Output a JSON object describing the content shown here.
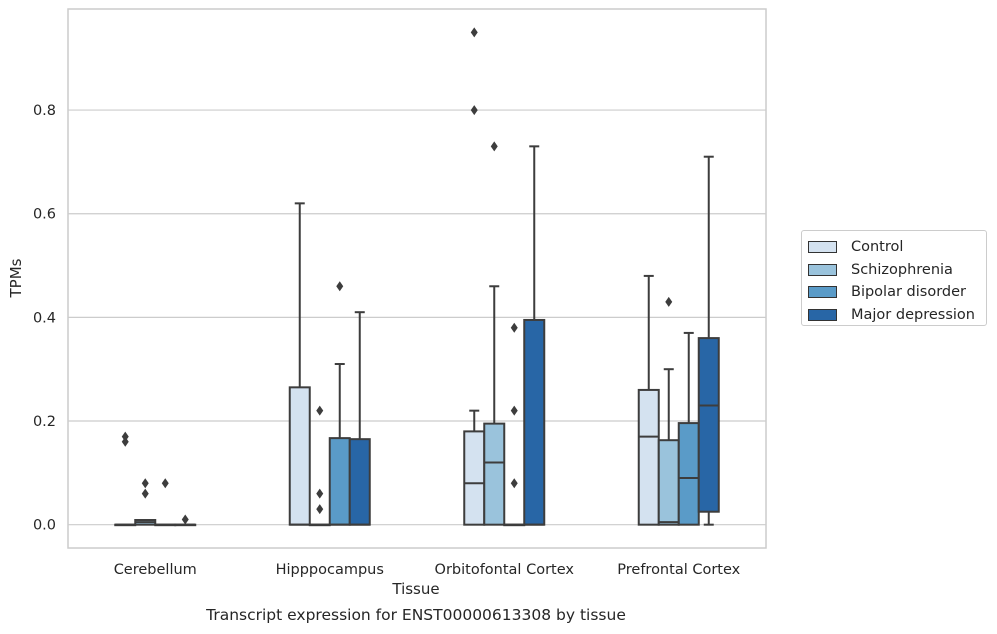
{
  "chart_data": {
    "type": "box",
    "xlabel": "Tissue",
    "ylabel": "TPMs",
    "caption": "Transcript expression for ENST00000613308 by tissue",
    "ylim": [
      -0.045,
      0.995
    ],
    "yticks": [
      0.0,
      0.2,
      0.4,
      0.6,
      0.8
    ],
    "ytick_labels": [
      "0.0",
      "0.2",
      "0.4",
      "0.6",
      "0.8"
    ],
    "grid": true,
    "legend_position": "right",
    "categories": [
      "Cerebellum",
      "Hipppocampus",
      "Orbitofontal Cortex",
      "Prefrontal Cortex"
    ],
    "series": [
      {
        "name": "Control",
        "color": "#d4e2f0",
        "boxes": [
          {
            "whislo": 0,
            "q1": 0,
            "med": 0,
            "q3": 0,
            "whishi": 0,
            "fliers": [
              0.16,
              0.17
            ]
          },
          {
            "whislo": 0,
            "q1": 0,
            "med": 0,
            "q3": 0.265,
            "whishi": 0.62,
            "fliers": []
          },
          {
            "whislo": 0,
            "q1": 0,
            "med": 0.08,
            "q3": 0.18,
            "whishi": 0.22,
            "fliers": [
              0.8,
              0.95
            ]
          },
          {
            "whislo": 0,
            "q1": 0,
            "med": 0.17,
            "q3": 0.26,
            "whishi": 0.48,
            "fliers": []
          }
        ]
      },
      {
        "name": "Schizophrenia",
        "color": "#9ac3dc",
        "boxes": [
          {
            "whislo": 0,
            "q1": 0,
            "med": 0.005,
            "q3": 0.009,
            "whishi": 0.009,
            "fliers": [
              0.06,
              0.08
            ]
          },
          {
            "whislo": 0,
            "q1": 0,
            "med": 0,
            "q3": 0,
            "whishi": 0,
            "fliers": [
              0.03,
              0.06,
              0.22
            ]
          },
          {
            "whislo": 0,
            "q1": 0,
            "med": 0.12,
            "q3": 0.195,
            "whishi": 0.46,
            "fliers": [
              0.73
            ]
          },
          {
            "whislo": 0,
            "q1": 0,
            "med": 0.005,
            "q3": 0.163,
            "whishi": 0.3,
            "fliers": [
              0.43
            ]
          }
        ]
      },
      {
        "name": "Bipolar disorder",
        "color": "#5a9bc8",
        "boxes": [
          {
            "whislo": 0,
            "q1": 0,
            "med": 0,
            "q3": 0,
            "whishi": 0,
            "fliers": [
              0.08
            ]
          },
          {
            "whislo": 0,
            "q1": 0,
            "med": 0,
            "q3": 0.167,
            "whishi": 0.31,
            "fliers": [
              0.46
            ]
          },
          {
            "whislo": 0,
            "q1": 0,
            "med": 0,
            "q3": 0,
            "whishi": 0,
            "fliers": [
              0.08,
              0.22,
              0.38
            ]
          },
          {
            "whislo": 0,
            "q1": 0,
            "med": 0.09,
            "q3": 0.196,
            "whishi": 0.37,
            "fliers": []
          }
        ]
      },
      {
        "name": "Major depression",
        "color": "#2866a6",
        "boxes": [
          {
            "whislo": 0,
            "q1": 0,
            "med": 0,
            "q3": 0,
            "whishi": 0,
            "fliers": [
              0.01
            ]
          },
          {
            "whislo": 0,
            "q1": 0,
            "med": 0,
            "q3": 0.165,
            "whishi": 0.41,
            "fliers": []
          },
          {
            "whislo": 0,
            "q1": 0,
            "med": 0,
            "q3": 0.395,
            "whishi": 0.73,
            "fliers": []
          },
          {
            "whislo": 0,
            "q1": 0.025,
            "med": 0.23,
            "q3": 0.36,
            "whishi": 0.71,
            "fliers": []
          }
        ]
      }
    ]
  }
}
